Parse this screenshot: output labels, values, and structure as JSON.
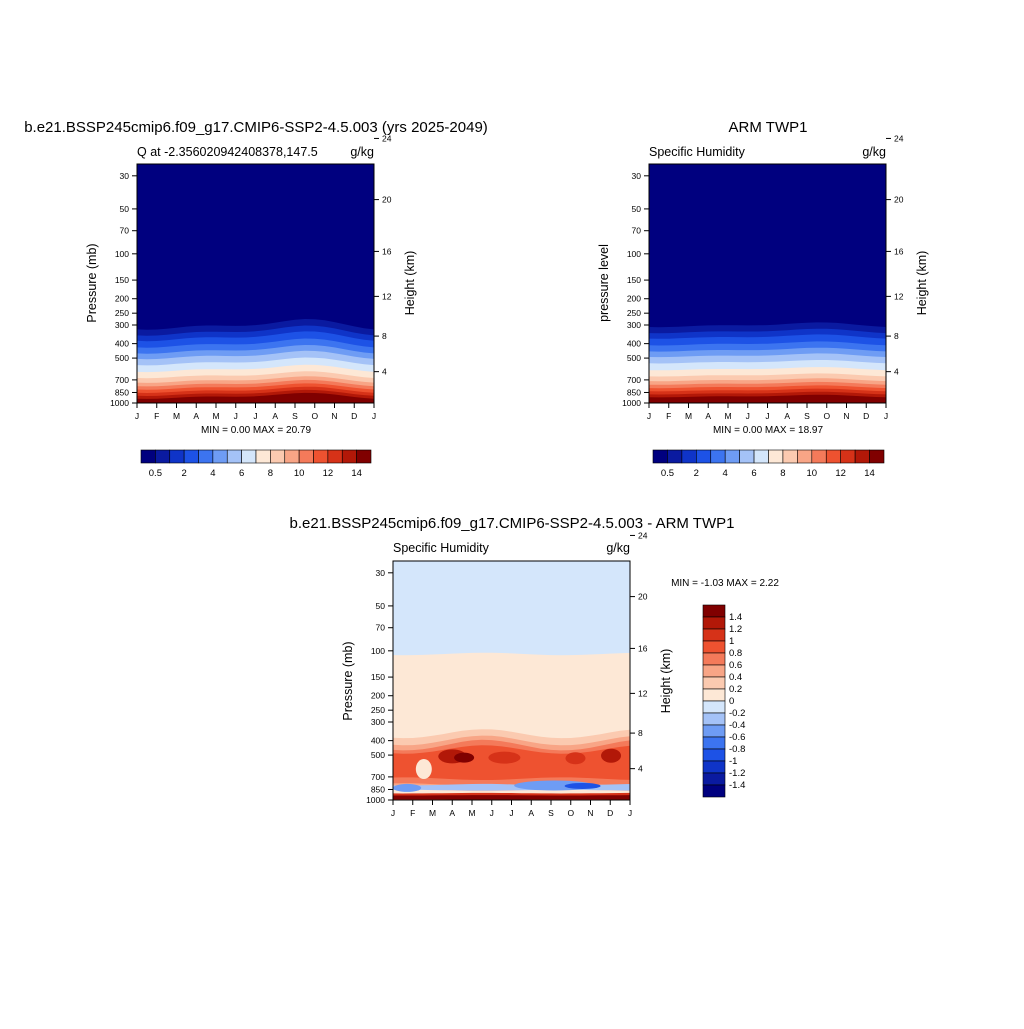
{
  "colors": {
    "seq": [
      "#00007f",
      "#0a1aa0",
      "#0f34c8",
      "#1d52e6",
      "#3c74f0",
      "#6e9cf4",
      "#a4c2f7",
      "#d4e6fb",
      "#fde8d6",
      "#fbcab0",
      "#f8a586",
      "#f47a5a",
      "#ee5230",
      "#d63218",
      "#b21808",
      "#800000"
    ],
    "diff": [
      "#00007f",
      "#0a1aa0",
      "#0f34c8",
      "#1d52e6",
      "#3c74f0",
      "#6e9cf4",
      "#a4c2f7",
      "#d4e6fb",
      "#fde8d6",
      "#fbcab0",
      "#f8a586",
      "#f47a5a",
      "#ee5230",
      "#d63218",
      "#b21808",
      "#800000"
    ]
  },
  "month_labels": [
    "J",
    "F",
    "M",
    "A",
    "M",
    "J",
    "J",
    "A",
    "S",
    "O",
    "N",
    "D",
    "J"
  ],
  "pressure_ticks": [
    "30",
    "50",
    "70",
    "100",
    "150",
    "200",
    "250",
    "300",
    "400",
    "500",
    "700",
    "850",
    "1000"
  ],
  "height_ticks": [
    "24",
    "20",
    "16",
    "12",
    "8",
    "4"
  ],
  "panel1": {
    "title": "b.e21.BSSP245cmip6.f09_g17.CMIP6-SSP2-4.5.003 (yrs 2025-2049)",
    "left_string": "Q at -2.356020942408378,147.5",
    "right_string": "g/kg",
    "ylabel": "Pressure (mb)",
    "y2label": "Height (km)",
    "minmax": "MIN =   0.00 MAX =  20.79",
    "colorbar_labels": [
      "0.5",
      "2",
      "4",
      "6",
      "8",
      "10",
      "12",
      "14"
    ]
  },
  "panel2": {
    "title": "ARM TWP1",
    "left_string": "Specific Humidity",
    "right_string": "g/kg",
    "ylabel": "pressure level",
    "y2label": "Height (km)",
    "minmax": "MIN =   0.00 MAX =  18.97",
    "colorbar_labels": [
      "0.5",
      "2",
      "4",
      "6",
      "8",
      "10",
      "12",
      "14"
    ]
  },
  "panel3": {
    "title": "b.e21.BSSP245cmip6.f09_g17.CMIP6-SSP2-4.5.003 - ARM TWP1",
    "left_string": "Specific Humidity",
    "right_string": "g/kg",
    "ylabel": "Pressure (mb)",
    "y2label": "Height (km)",
    "minmax": "MIN =  -1.03 MAX =   2.22",
    "colorbar_labels": [
      "1.4",
      "1.2",
      "1",
      "0.8",
      "0.6",
      "0.4",
      "0.2",
      "0",
      "-0.2",
      "-0.4",
      "-0.6",
      "-0.8",
      "-1",
      "-1.2",
      "-1.4"
    ]
  },
  "chart_data": [
    {
      "type": "heatmap",
      "title": "b.e21.BSSP245cmip6.f09_g17.CMIP6-SSP2-4.5.003 (yrs 2025-2049)",
      "xlabel": "",
      "ylabel": "Pressure (mb)",
      "y2label": "Height (km)",
      "x": [
        "J",
        "F",
        "M",
        "A",
        "M",
        "J",
        "J",
        "A",
        "S",
        "O",
        "N",
        "D",
        "J"
      ],
      "y_levels_mb": [
        1000,
        850,
        700,
        500,
        400,
        300,
        250,
        200,
        150,
        100,
        70,
        50,
        30
      ],
      "values_gkg_annual_mean": [
        18.5,
        13.0,
        8.0,
        3.5,
        1.8,
        0.6,
        0.2,
        0.05,
        0.0,
        0.0,
        0.0,
        0.0,
        0.0
      ],
      "min": 0.0,
      "max": 20.79,
      "units": "g/kg",
      "ylim": [
        1000,
        25
      ],
      "colorbar_levels": [
        0.5,
        2,
        4,
        6,
        8,
        10,
        12,
        14
      ]
    },
    {
      "type": "heatmap",
      "title": "ARM TWP1",
      "xlabel": "",
      "ylabel": "pressure level",
      "y2label": "Height (km)",
      "x": [
        "J",
        "F",
        "M",
        "A",
        "M",
        "J",
        "J",
        "A",
        "S",
        "O",
        "N",
        "D",
        "J"
      ],
      "y_levels_mb": [
        1000,
        850,
        700,
        500,
        400,
        300,
        250,
        200,
        150,
        100,
        70,
        50,
        30
      ],
      "values_gkg_annual_mean": [
        17.5,
        12.5,
        7.5,
        3.2,
        1.6,
        0.5,
        0.2,
        0.05,
        0.0,
        0.0,
        0.0,
        0.0,
        0.0
      ],
      "min": 0.0,
      "max": 18.97,
      "units": "g/kg",
      "ylim": [
        1000,
        25
      ],
      "colorbar_levels": [
        0.5,
        2,
        4,
        6,
        8,
        10,
        12,
        14
      ]
    },
    {
      "type": "heatmap",
      "title": "b.e21.BSSP245cmip6.f09_g17.CMIP6-SSP2-4.5.003 - ARM TWP1",
      "xlabel": "",
      "ylabel": "Pressure (mb)",
      "y2label": "Height (km)",
      "x": [
        "J",
        "F",
        "M",
        "A",
        "M",
        "J",
        "J",
        "A",
        "S",
        "O",
        "N",
        "D",
        "J"
      ],
      "y_levels_mb": [
        1000,
        850,
        700,
        500,
        400,
        300,
        250,
        200,
        150,
        100,
        70,
        50,
        30
      ],
      "values_gkg_annual_mean": [
        1.2,
        -0.6,
        0.4,
        1.0,
        0.5,
        0.1,
        0.05,
        0.02,
        0.02,
        0.0,
        -0.02,
        -0.02,
        -0.02
      ],
      "min": -1.03,
      "max": 2.22,
      "units": "g/kg",
      "ylim": [
        1000,
        25
      ],
      "colorbar_levels": [
        -1.4,
        -1.2,
        -1,
        -0.8,
        -0.6,
        -0.4,
        -0.2,
        0,
        0.2,
        0.4,
        0.6,
        0.8,
        1,
        1.2,
        1.4
      ]
    }
  ]
}
